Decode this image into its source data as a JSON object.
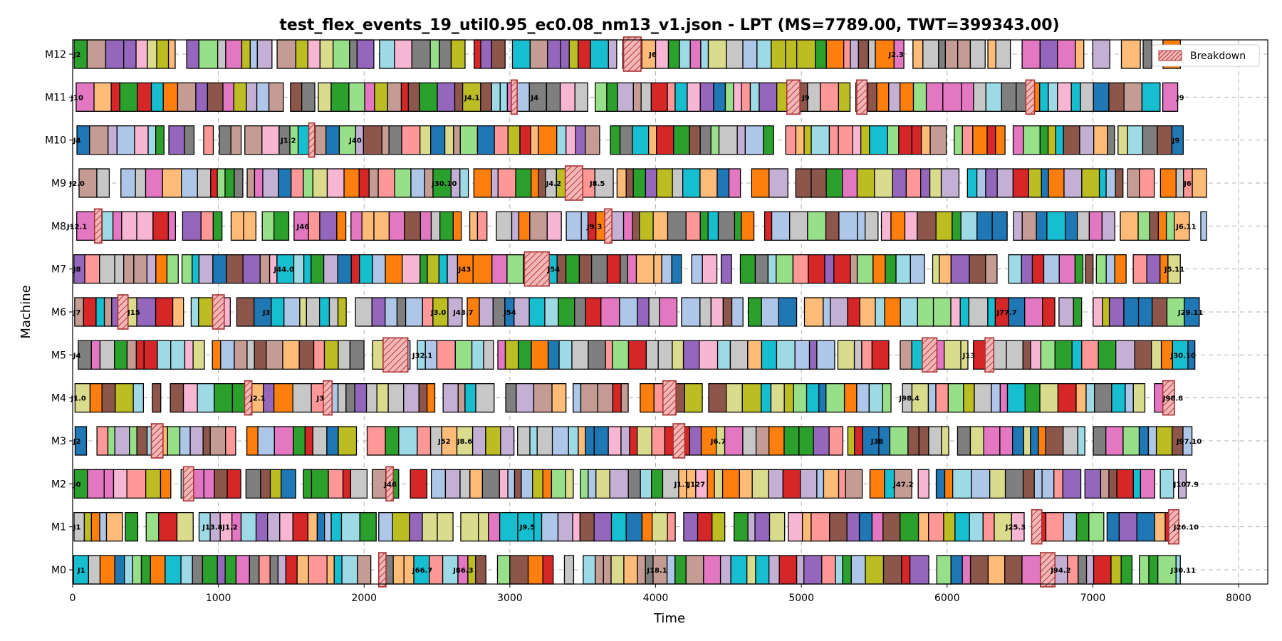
{
  "chart_data": {
    "type": "gantt",
    "title": "test_flex_events_19_util0.95_ec0.08_nm13_v1.json - LPT (MS=7789.00, TWT=399343.00)",
    "xlabel": "Time",
    "ylabel": "Machine",
    "xlim": [
      0,
      8200
    ],
    "xticks": [
      "0",
      "1000",
      "2000",
      "3000",
      "4000",
      "5000",
      "6000",
      "7000",
      "8000"
    ],
    "xtick_values": [
      0,
      1000,
      2000,
      3000,
      4000,
      5000,
      6000,
      7000,
      8000
    ],
    "machines": [
      "M0",
      "M1",
      "M2",
      "M3",
      "M4",
      "M5",
      "M6",
      "M7",
      "M8",
      "M9",
      "M10",
      "M11",
      "M12"
    ],
    "grid": true,
    "legend": {
      "position": "top-right",
      "entries": [
        "Breakdown"
      ]
    },
    "breakdown_color": "#f4b6b6",
    "breakdown_edge": "#a83232",
    "palette": [
      "#1f77b4",
      "#aec7e8",
      "#ff7f0e",
      "#ffbb78",
      "#2ca02c",
      "#98df8a",
      "#d62728",
      "#ff9896",
      "#9467bd",
      "#c5b0d5",
      "#8c564b",
      "#c49c94",
      "#e377c2",
      "#f7b6d2",
      "#7f7f7f",
      "#c7c7c7",
      "#bcbd22",
      "#dbdb8d",
      "#17becf",
      "#9edae5"
    ],
    "machine_end_times": [
      7600,
      7590,
      7640,
      7680,
      7590,
      7700,
      7730,
      7600,
      7780,
      7780,
      7620,
      7600,
      7610
    ],
    "breakdowns": [
      {
        "machine": "M0",
        "start": 2100,
        "end": 2150
      },
      {
        "machine": "M0",
        "start": 6640,
        "end": 6740
      },
      {
        "machine": "M1",
        "start": 6580,
        "end": 6650
      },
      {
        "machine": "M1",
        "start": 7520,
        "end": 7590
      },
      {
        "machine": "M2",
        "start": 760,
        "end": 830
      },
      {
        "machine": "M2",
        "start": 2150,
        "end": 2200
      },
      {
        "machine": "M3",
        "start": 540,
        "end": 620
      },
      {
        "machine": "M3",
        "start": 4120,
        "end": 4200
      },
      {
        "machine": "M4",
        "start": 1180,
        "end": 1230
      },
      {
        "machine": "M4",
        "start": 1720,
        "end": 1780
      },
      {
        "machine": "M4",
        "start": 4050,
        "end": 4140
      },
      {
        "machine": "M4",
        "start": 7480,
        "end": 7560
      },
      {
        "machine": "M5",
        "start": 2130,
        "end": 2300
      },
      {
        "machine": "M5",
        "start": 5830,
        "end": 5930
      },
      {
        "machine": "M5",
        "start": 6260,
        "end": 6320
      },
      {
        "machine": "M6",
        "start": 310,
        "end": 380
      },
      {
        "machine": "M6",
        "start": 960,
        "end": 1040
      },
      {
        "machine": "M7",
        "start": 3100,
        "end": 3270
      },
      {
        "machine": "M8",
        "start": 150,
        "end": 200
      },
      {
        "machine": "M8",
        "start": 3650,
        "end": 3700
      },
      {
        "machine": "M9",
        "start": 3380,
        "end": 3500
      },
      {
        "machine": "M10",
        "start": 1620,
        "end": 1660
      },
      {
        "machine": "M11",
        "start": 3010,
        "end": 3050
      },
      {
        "machine": "M11",
        "start": 4900,
        "end": 4990
      },
      {
        "machine": "M11",
        "start": 5380,
        "end": 5450
      },
      {
        "machine": "M11",
        "start": 6540,
        "end": 6600
      },
      {
        "machine": "M12",
        "start": 3780,
        "end": 3900
      }
    ],
    "job_labels": [
      {
        "machine": "M0",
        "x": 60,
        "text": "J1"
      },
      {
        "machine": "M0",
        "x": 2400,
        "text": "J66.7"
      },
      {
        "machine": "M0",
        "x": 2680,
        "text": "J86.3"
      },
      {
        "machine": "M0",
        "x": 4010,
        "text": "J18.1"
      },
      {
        "machine": "M0",
        "x": 6780,
        "text": "J94.2"
      },
      {
        "machine": "M0",
        "x": 7620,
        "text": "J30.11"
      },
      {
        "machine": "M1",
        "x": 30,
        "text": "J1"
      },
      {
        "machine": "M1",
        "x": 960,
        "text": "J13.8"
      },
      {
        "machine": "M1",
        "x": 1080,
        "text": "J1.2"
      },
      {
        "machine": "M1",
        "x": 3120,
        "text": "J9.5"
      },
      {
        "machine": "M1",
        "x": 6470,
        "text": "J25.3"
      },
      {
        "machine": "M1",
        "x": 7640,
        "text": "J26.10"
      },
      {
        "machine": "M2",
        "x": 30,
        "text": "J0"
      },
      {
        "machine": "M2",
        "x": 2180,
        "text": "J46"
      },
      {
        "machine": "M2",
        "x": 4180,
        "text": "J1.1"
      },
      {
        "machine": "M2",
        "x": 4280,
        "text": "J127"
      },
      {
        "machine": "M2",
        "x": 5700,
        "text": "J47.2"
      },
      {
        "machine": "M2",
        "x": 7640,
        "text": "J107.9"
      },
      {
        "machine": "M3",
        "x": 30,
        "text": "J2"
      },
      {
        "machine": "M3",
        "x": 2550,
        "text": "J52"
      },
      {
        "machine": "M3",
        "x": 2690,
        "text": "J8.6"
      },
      {
        "machine": "M3",
        "x": 4430,
        "text": "J6.7"
      },
      {
        "machine": "M3",
        "x": 5520,
        "text": "J38"
      },
      {
        "machine": "M3",
        "x": 7660,
        "text": "J97.10"
      },
      {
        "machine": "M4",
        "x": 40,
        "text": "J1.0"
      },
      {
        "machine": "M4",
        "x": 1270,
        "text": "J2.1"
      },
      {
        "machine": "M4",
        "x": 1700,
        "text": "J3"
      },
      {
        "machine": "M4",
        "x": 5740,
        "text": "J98.4"
      },
      {
        "machine": "M4",
        "x": 7550,
        "text": "J98.8"
      },
      {
        "machine": "M5",
        "x": 30,
        "text": "J4"
      },
      {
        "machine": "M5",
        "x": 2400,
        "text": "J32.1"
      },
      {
        "machine": "M5",
        "x": 6150,
        "text": "J13"
      },
      {
        "machine": "M5",
        "x": 7620,
        "text": "J30.10"
      },
      {
        "machine": "M6",
        "x": 30,
        "text": "J7"
      },
      {
        "machine": "M6",
        "x": 420,
        "text": "J15"
      },
      {
        "machine": "M6",
        "x": 1330,
        "text": "J3"
      },
      {
        "machine": "M6",
        "x": 2510,
        "text": "J3.0"
      },
      {
        "machine": "M6",
        "x": 2680,
        "text": "J43.7"
      },
      {
        "machine": "M6",
        "x": 3000,
        "text": "J54"
      },
      {
        "machine": "M6",
        "x": 6410,
        "text": "J77.7"
      },
      {
        "machine": "M6",
        "x": 7670,
        "text": "J29.11"
      },
      {
        "machine": "M7",
        "x": 30,
        "text": "J8"
      },
      {
        "machine": "M7",
        "x": 1450,
        "text": "J44.0"
      },
      {
        "machine": "M7",
        "x": 2690,
        "text": "J43"
      },
      {
        "machine": "M7",
        "x": 3300,
        "text": "J54"
      },
      {
        "machine": "M7",
        "x": 7560,
        "text": "J5.11"
      },
      {
        "machine": "M8",
        "x": 30,
        "text": "J12.1"
      },
      {
        "machine": "M8",
        "x": 1580,
        "text": "J46"
      },
      {
        "machine": "M8",
        "x": 3580,
        "text": "J9.3"
      },
      {
        "machine": "M8",
        "x": 7640,
        "text": "J6.11"
      },
      {
        "machine": "M9",
        "x": 30,
        "text": "J2.0"
      },
      {
        "machine": "M9",
        "x": 2550,
        "text": "J30.10"
      },
      {
        "machine": "M9",
        "x": 3300,
        "text": "J4.2"
      },
      {
        "machine": "M9",
        "x": 3600,
        "text": "J8.5"
      },
      {
        "machine": "M9",
        "x": 7650,
        "text": "J6"
      },
      {
        "machine": "M10",
        "x": 30,
        "text": "J4"
      },
      {
        "machine": "M10",
        "x": 1480,
        "text": "J1.2"
      },
      {
        "machine": "M10",
        "x": 1940,
        "text": "J40"
      },
      {
        "machine": "M10",
        "x": 7570,
        "text": "J9"
      },
      {
        "machine": "M11",
        "x": 30,
        "text": "J10"
      },
      {
        "machine": "M11",
        "x": 2740,
        "text": "J4.1"
      },
      {
        "machine": "M11",
        "x": 3170,
        "text": "J4"
      },
      {
        "machine": "M11",
        "x": 5030,
        "text": "J9"
      },
      {
        "machine": "M11",
        "x": 7600,
        "text": "J9"
      },
      {
        "machine": "M12",
        "x": 30,
        "text": "J2"
      },
      {
        "machine": "M12",
        "x": 3980,
        "text": "J6"
      },
      {
        "machine": "M12",
        "x": 5650,
        "text": "J2.3"
      },
      {
        "machine": "M12",
        "x": 7620,
        "text": "J8.5"
      }
    ]
  }
}
